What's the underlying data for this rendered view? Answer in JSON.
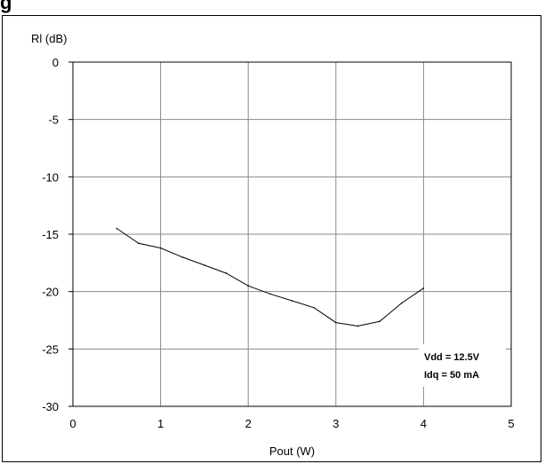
{
  "header": {
    "text": "g"
  },
  "chart_data": {
    "type": "line",
    "xlabel": "Pout (W)",
    "ylabel": "Rl (dB)",
    "xlim": [
      0,
      5
    ],
    "ylim": [
      -30,
      0
    ],
    "x_ticks": [
      "0",
      "1",
      "2",
      "3",
      "4",
      "5"
    ],
    "y_ticks": [
      "0",
      "-5",
      "-10",
      "-15",
      "-20",
      "-25",
      "-30"
    ],
    "grid": true,
    "series": [
      {
        "x": [
          0.5,
          0.75,
          1.0,
          1.25,
          1.5,
          1.75,
          2.0,
          2.25,
          2.5,
          2.75,
          3.0,
          3.25,
          3.5,
          3.75,
          4.0
        ],
        "y": [
          -14.5,
          -15.8,
          -16.2,
          -17.0,
          -17.7,
          -18.4,
          -19.5,
          -20.2,
          -20.8,
          -21.4,
          -22.7,
          -23.0,
          -22.6,
          -21.0,
          -19.7
        ]
      }
    ],
    "annotations": [
      "Vdd = 12.5V",
      "Idq = 50 mA"
    ],
    "colors": {
      "line": "#000000",
      "grid": "#888888",
      "frame": "#000000"
    }
  }
}
